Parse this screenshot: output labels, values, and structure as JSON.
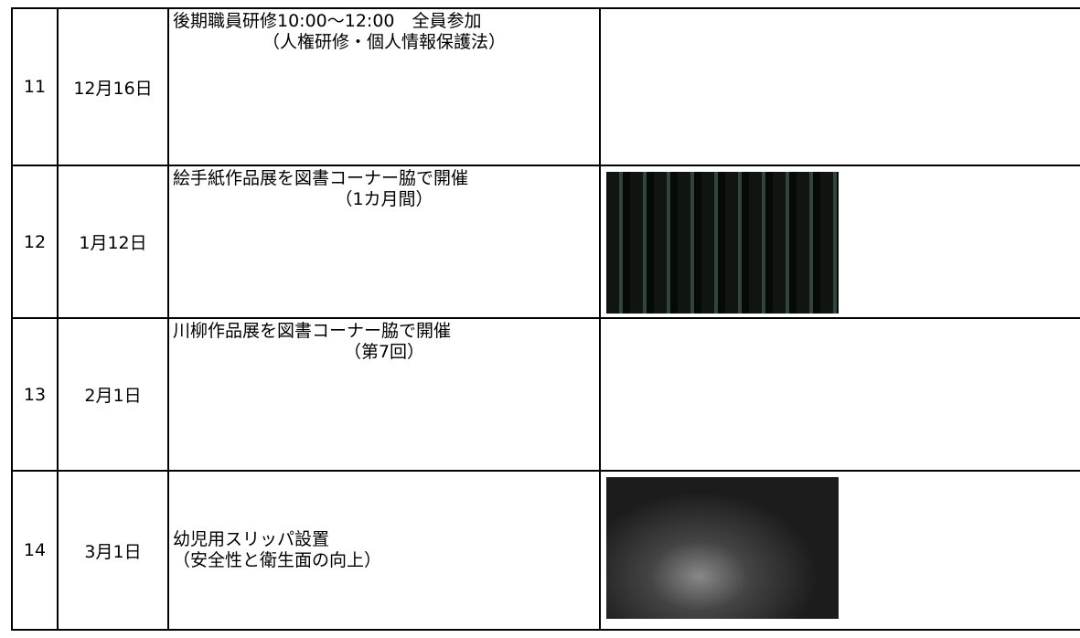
{
  "table": {
    "rows": [
      [
        "11",
        "12月16日",
        "後期職員研修10:00～12:00　全員参加",
        "（人権研修・個人情報保護法）"
      ],
      [
        "12",
        "1月12日",
        "絵手紙作品展を図書コーナー脇で開催",
        "（1カ月間）"
      ],
      [
        "13",
        "2月1日",
        "川柳作品展を図書コーナー脇で開催",
        "（第7回）"
      ],
      [
        "14",
        "3月1日",
        "幼児用スリッパ設置",
        "（安全性と衛生面の向上）"
      ]
    ]
  }
}
